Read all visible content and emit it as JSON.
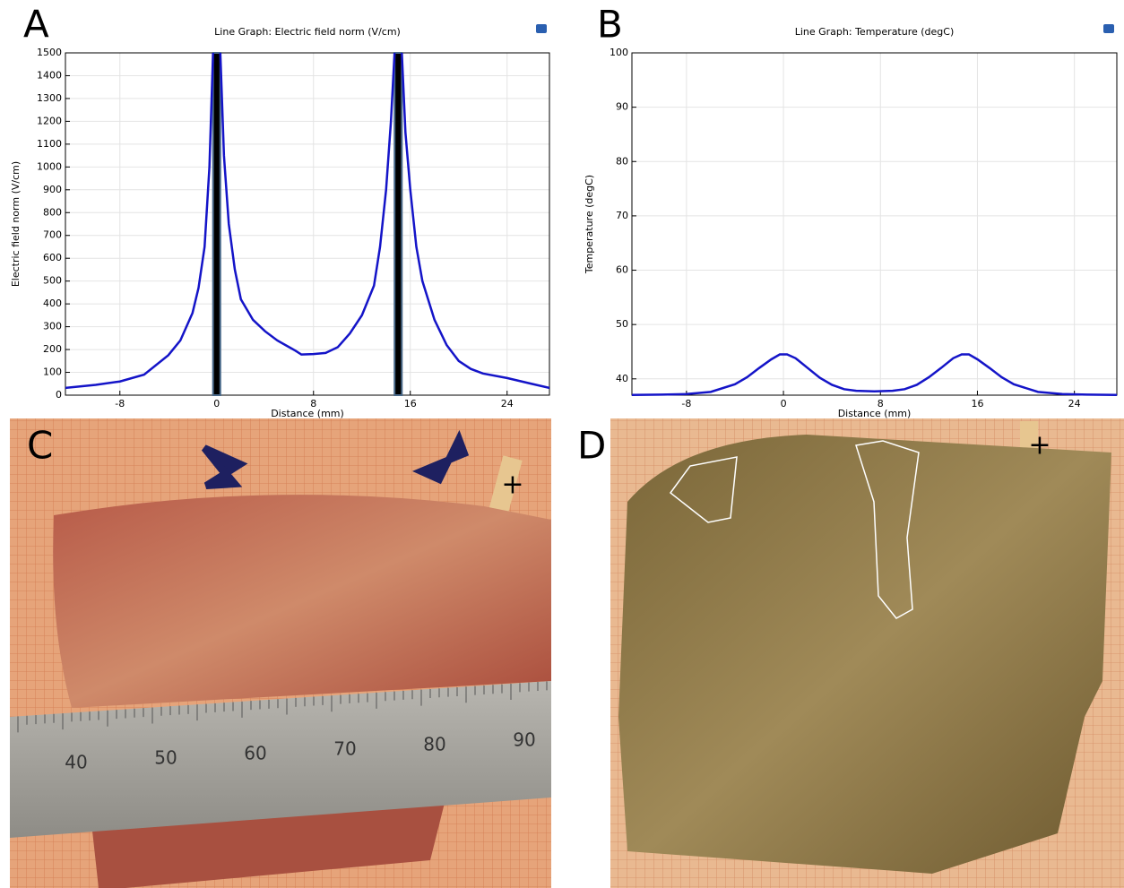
{
  "chart_data": [
    {
      "type": "line",
      "panel_label": "A",
      "title": "Line Graph: Electric field norm (V/cm)",
      "x_label": "Distance (mm)",
      "y_label": "Electric field norm (V/cm)",
      "xlim": [
        -12.5,
        27.5
      ],
      "ylim": [
        0,
        1500
      ],
      "xticks": [
        -8,
        0,
        8,
        16,
        24
      ],
      "yticks": [
        0,
        100,
        200,
        300,
        400,
        500,
        600,
        700,
        800,
        900,
        1000,
        1100,
        1200,
        1300,
        1400,
        1500
      ],
      "grid": true,
      "shaded_bands": [
        [
          -0.3,
          0.3
        ],
        [
          14.7,
          15.3
        ]
      ],
      "band_color": "#000000",
      "x": [
        -12.5,
        -10,
        -8,
        -6,
        -4,
        -3,
        -2,
        -1.5,
        -1,
        -0.6,
        -0.3,
        0,
        0.3,
        0.6,
        1,
        1.5,
        2,
        3,
        4,
        5,
        6,
        6.5,
        7,
        8,
        9,
        10,
        11,
        12,
        13,
        13.5,
        14,
        14.4,
        14.7,
        15,
        15.3,
        15.6,
        16,
        16.5,
        17,
        18,
        19,
        20,
        21,
        22,
        24,
        26,
        27.5
      ],
      "series": [
        {
          "color": "#1414c8",
          "values": [
            32,
            45,
            60,
            90,
            175,
            240,
            360,
            470,
            650,
            1000,
            1500,
            null,
            1500,
            1050,
            750,
            550,
            420,
            330,
            280,
            240,
            210,
            195,
            178,
            180,
            185,
            210,
            270,
            350,
            480,
            650,
            900,
            1200,
            1500,
            null,
            1500,
            1150,
            900,
            650,
            500,
            330,
            220,
            150,
            115,
            95,
            75,
            50,
            32
          ]
        }
      ]
    },
    {
      "type": "line",
      "panel_label": "B",
      "title": "Line Graph: Temperature (degC)",
      "x_label": "Distance (mm)",
      "y_label": "Temperature (degC)",
      "xlim": [
        -12.5,
        27.5
      ],
      "ylim": [
        37,
        100
      ],
      "xticks": [
        -8,
        0,
        8,
        16,
        24
      ],
      "yticks": [
        40,
        50,
        60,
        70,
        80,
        90,
        100
      ],
      "grid": true,
      "x": [
        -12.5,
        -10,
        -8,
        -6,
        -4,
        -3,
        -2,
        -1,
        -0.3,
        0.3,
        1,
        2,
        3,
        4,
        5,
        6,
        7.5,
        9,
        10,
        11,
        12,
        13,
        14,
        14.7,
        15.3,
        16,
        17,
        18,
        19,
        21,
        23,
        25,
        27.5
      ],
      "series": [
        {
          "color": "#1414c8",
          "values": [
            37.05,
            37.1,
            37.2,
            37.6,
            39,
            40.3,
            42,
            43.6,
            44.5,
            44.5,
            43.8,
            42,
            40.2,
            38.9,
            38.1,
            37.8,
            37.7,
            37.8,
            38.1,
            38.9,
            40.3,
            42,
            43.8,
            44.5,
            44.5,
            43.6,
            42,
            40.3,
            39,
            37.6,
            37.2,
            37.1,
            37.05
          ]
        }
      ]
    }
  ],
  "photos": [
    {
      "panel_label": "C",
      "marker": "+",
      "ruler_labels": [
        "40",
        "50",
        "60",
        "70",
        "80",
        "90"
      ]
    },
    {
      "panel_label": "D",
      "marker": "+"
    }
  ]
}
